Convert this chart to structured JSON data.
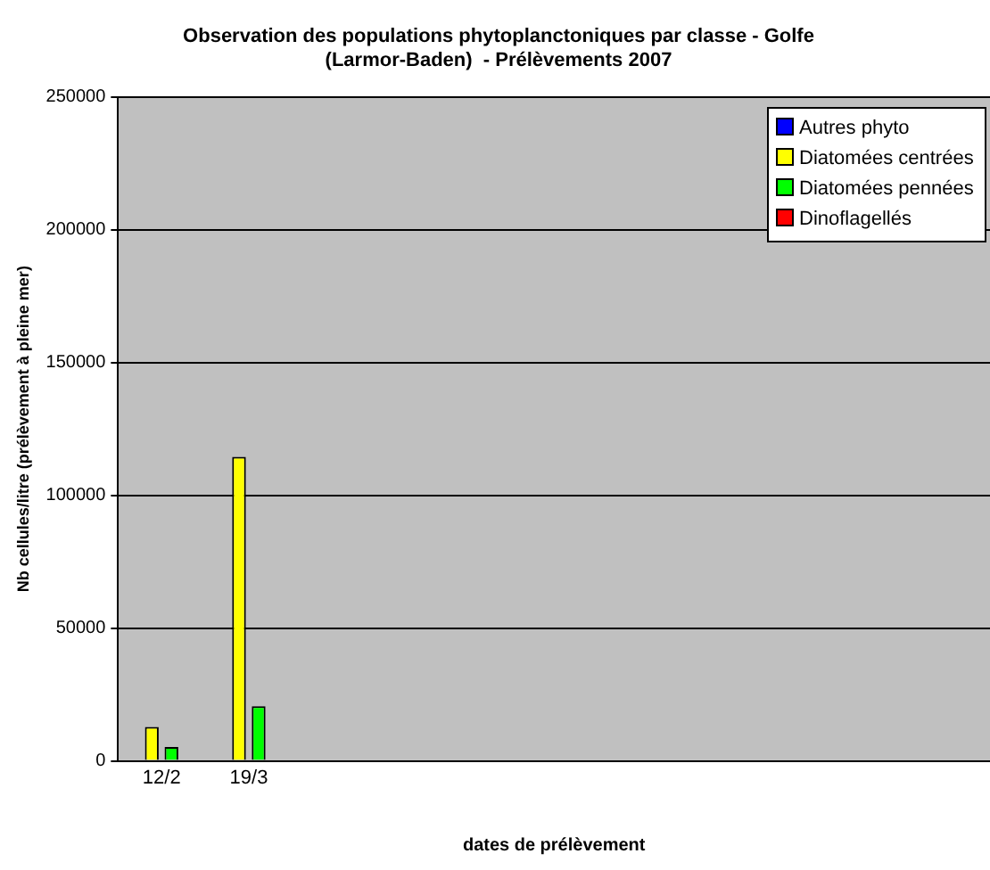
{
  "chart_data": {
    "type": "bar",
    "title": "Observation des populations phytoplanctoniques par classe - Golfe (Larmor-Baden)  - Prélèvements 2007",
    "xlabel": "dates de prélèvement",
    "ylabel": "Nb cellules/litre (prélèvement à pleine mer)",
    "categories": [
      "12/2",
      "19/3",
      null,
      null,
      null,
      null,
      null,
      null,
      null,
      null
    ],
    "series": [
      {
        "name": "Autres phyto",
        "color": "#0000ff",
        "values": [
          0,
          0,
          null,
          null,
          null,
          null,
          null,
          null,
          null,
          null
        ]
      },
      {
        "name": "Diatomées centrées",
        "color": "#ffff00",
        "values": [
          12800,
          114500,
          null,
          null,
          null,
          null,
          null,
          null,
          null,
          null
        ]
      },
      {
        "name": "Diatomées pennées",
        "color": "#00ff00",
        "values": [
          5200,
          20600,
          null,
          null,
          null,
          null,
          null,
          null,
          null,
          null
        ]
      },
      {
        "name": "Dinoflagellés",
        "color": "#ff0000",
        "values": [
          null,
          null,
          null,
          null,
          null,
          null,
          null,
          null,
          null,
          null
        ]
      }
    ],
    "ylim": [
      0,
      250000
    ],
    "yticks": [
      0,
      50000,
      100000,
      150000,
      200000,
      250000
    ],
    "grid": "y",
    "legend": "top right"
  }
}
